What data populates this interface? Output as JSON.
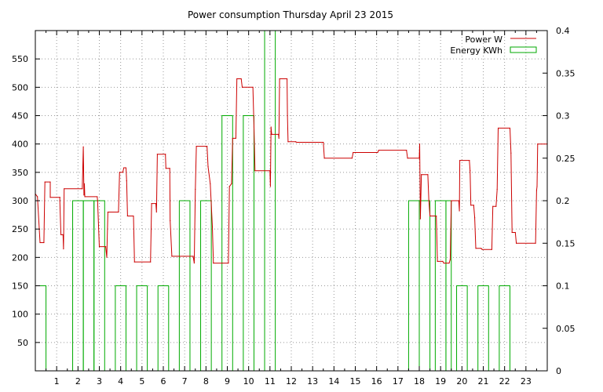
{
  "chart_data": {
    "type": "line",
    "title": "Power consumption Thursday April 23 2015",
    "x_ticks": [
      1,
      2,
      3,
      4,
      5,
      6,
      7,
      8,
      9,
      10,
      11,
      12,
      13,
      14,
      15,
      16,
      17,
      18,
      19,
      20,
      21,
      22,
      23
    ],
    "xlim": [
      0,
      24
    ],
    "ylim_left": [
      0,
      600
    ],
    "ylim_right": [
      0,
      0.4
    ],
    "y_ticks_left": [
      50,
      100,
      150,
      200,
      250,
      300,
      350,
      400,
      450,
      500,
      550
    ],
    "y_ticks_right": [
      "0",
      "0.05",
      "0.1",
      "0.15",
      "0.2",
      "0.25",
      "0.3",
      "0.35",
      "0.4"
    ],
    "grid": true,
    "legend_position": "top-right",
    "colors": {
      "power": "#cc0000",
      "energy": "#00aa00"
    },
    "series": [
      {
        "name": "Power W",
        "axis": "left",
        "style": "step",
        "points": [
          [
            0.0,
            312
          ],
          [
            0.1,
            307
          ],
          [
            0.22,
            226
          ],
          [
            0.4,
            226
          ],
          [
            0.45,
            333
          ],
          [
            0.7,
            333
          ],
          [
            0.7,
            306
          ],
          [
            1.15,
            306
          ],
          [
            1.15,
            300
          ],
          [
            1.2,
            240
          ],
          [
            1.3,
            240
          ],
          [
            1.32,
            215
          ],
          [
            1.35,
            321
          ],
          [
            2.2,
            321
          ],
          [
            2.25,
            395
          ],
          [
            2.28,
            310
          ],
          [
            2.3,
            330
          ],
          [
            2.32,
            307
          ],
          [
            2.9,
            307
          ],
          [
            2.92,
            300
          ],
          [
            3.0,
            219
          ],
          [
            3.3,
            219
          ],
          [
            3.35,
            200
          ],
          [
            3.4,
            280
          ],
          [
            3.9,
            280
          ],
          [
            3.95,
            350
          ],
          [
            4.1,
            350
          ],
          [
            4.15,
            358
          ],
          [
            4.25,
            358
          ],
          [
            4.28,
            335
          ],
          [
            4.32,
            273
          ],
          [
            4.6,
            273
          ],
          [
            4.65,
            192
          ],
          [
            5.4,
            192
          ],
          [
            5.45,
            295
          ],
          [
            5.65,
            295
          ],
          [
            5.68,
            280
          ],
          [
            5.72,
            382
          ],
          [
            6.1,
            382
          ],
          [
            6.12,
            357
          ],
          [
            6.3,
            357
          ],
          [
            6.32,
            265
          ],
          [
            6.4,
            202
          ],
          [
            7.4,
            202
          ],
          [
            7.45,
            190
          ],
          [
            7.5,
            320
          ],
          [
            7.55,
            396
          ],
          [
            8.05,
            396
          ],
          [
            8.1,
            360
          ],
          [
            8.2,
            330
          ],
          [
            8.3,
            254
          ],
          [
            8.35,
            190
          ],
          [
            9.05,
            190
          ],
          [
            9.1,
            325
          ],
          [
            9.2,
            330
          ],
          [
            9.25,
            410
          ],
          [
            9.4,
            410
          ],
          [
            9.45,
            515
          ],
          [
            9.65,
            515
          ],
          [
            9.7,
            500
          ],
          [
            10.2,
            500
          ],
          [
            10.25,
            430
          ],
          [
            10.3,
            353
          ],
          [
            11.0,
            353
          ],
          [
            11.02,
            325
          ],
          [
            11.05,
            430
          ],
          [
            11.08,
            417
          ],
          [
            11.4,
            417
          ],
          [
            11.42,
            410
          ],
          [
            11.45,
            515
          ],
          [
            11.8,
            515
          ],
          [
            11.82,
            450
          ],
          [
            11.85,
            404
          ],
          [
            12.2,
            404
          ],
          [
            12.25,
            403
          ],
          [
            13.5,
            403
          ],
          [
            13.55,
            375
          ],
          [
            14.85,
            375
          ],
          [
            14.9,
            385
          ],
          [
            16.05,
            385
          ],
          [
            16.1,
            389
          ],
          [
            17.4,
            389
          ],
          [
            17.45,
            375
          ],
          [
            18.0,
            375
          ],
          [
            18.02,
            400
          ],
          [
            18.05,
            268
          ],
          [
            18.1,
            346
          ],
          [
            18.4,
            346
          ],
          [
            18.45,
            300
          ],
          [
            18.5,
            273
          ],
          [
            18.8,
            273
          ],
          [
            18.85,
            193
          ],
          [
            19.1,
            193
          ],
          [
            19.15,
            190
          ],
          [
            19.4,
            190
          ],
          [
            19.45,
            196
          ],
          [
            19.5,
            300
          ],
          [
            19.85,
            300
          ],
          [
            19.88,
            282
          ],
          [
            19.9,
            371
          ],
          [
            20.35,
            371
          ],
          [
            20.38,
            353
          ],
          [
            20.42,
            292
          ],
          [
            20.55,
            292
          ],
          [
            20.6,
            270
          ],
          [
            20.65,
            216
          ],
          [
            20.9,
            216
          ],
          [
            20.95,
            214
          ],
          [
            21.4,
            214
          ],
          [
            21.45,
            290
          ],
          [
            21.6,
            290
          ],
          [
            21.65,
            320
          ],
          [
            21.7,
            428
          ],
          [
            22.25,
            428
          ],
          [
            22.3,
            384
          ],
          [
            22.35,
            244
          ],
          [
            22.5,
            244
          ],
          [
            22.55,
            225
          ],
          [
            23.45,
            225
          ],
          [
            23.5,
            318
          ],
          [
            23.52,
            325
          ],
          [
            23.55,
            400
          ],
          [
            24.0,
            400
          ]
        ]
      },
      {
        "name": "Energy KWh",
        "axis": "right",
        "style": "boxes",
        "bars": [
          [
            0.0,
            0.5,
            0.1
          ],
          [
            1.75,
            2.25,
            0.2
          ],
          [
            2.25,
            2.75,
            0.2
          ],
          [
            2.75,
            3.25,
            0.2
          ],
          [
            3.75,
            4.25,
            0.1
          ],
          [
            4.75,
            5.25,
            0.1
          ],
          [
            5.75,
            6.25,
            0.1
          ],
          [
            6.75,
            7.25,
            0.2
          ],
          [
            7.75,
            8.25,
            0.2
          ],
          [
            8.75,
            9.25,
            0.3
          ],
          [
            9.75,
            10.25,
            0.3
          ],
          [
            10.75,
            11.25,
            0.4
          ],
          [
            17.5,
            18.0,
            0.2
          ],
          [
            18.0,
            18.5,
            0.2
          ],
          [
            18.75,
            19.25,
            0.2
          ],
          [
            19.25,
            19.5,
            0.2
          ],
          [
            19.75,
            20.25,
            0.1
          ],
          [
            20.75,
            21.25,
            0.1
          ],
          [
            21.75,
            22.25,
            0.1
          ]
        ]
      }
    ]
  }
}
